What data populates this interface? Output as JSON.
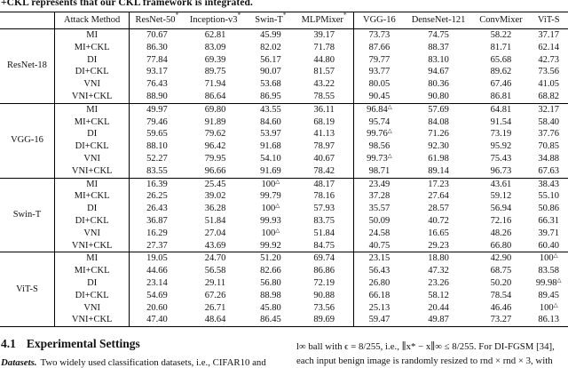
{
  "caption": "+CKL represents that our CKL framework is integrated.",
  "table": {
    "headers": [
      "Attack Method",
      "ResNet-50*",
      "Inception-v3*",
      "Swin-T*",
      "MLPMixer*",
      "VGG-16",
      "DenseNet-121",
      "ConvMixer",
      "ViT-S"
    ],
    "whitebox_marker": "△",
    "surrogate_marker": "*",
    "groups": [
      {
        "name": "ResNet-18",
        "rows": [
          {
            "method": "MI",
            "values": [
              "70.67",
              "62.81",
              "45.99",
              "39.17",
              "73.73",
              "74.75",
              "58.22",
              "37.17"
            ]
          },
          {
            "method": "MI+CKL",
            "values": [
              "86.30",
              "83.09",
              "82.02",
              "71.78",
              "87.66",
              "88.37",
              "81.71",
              "62.14"
            ]
          },
          {
            "method": "DI",
            "values": [
              "77.84",
              "69.39",
              "56.17",
              "44.80",
              "79.77",
              "83.10",
              "65.68",
              "42.73"
            ]
          },
          {
            "method": "DI+CKL",
            "values": [
              "93.17",
              "89.75",
              "90.07",
              "81.57",
              "93.77",
              "94.67",
              "89.62",
              "73.56"
            ]
          },
          {
            "method": "VNI",
            "values": [
              "76.43",
              "71.94",
              "53.68",
              "43.22",
              "80.05",
              "80.36",
              "67.46",
              "41.05"
            ]
          },
          {
            "method": "VNI+CKL",
            "values": [
              "88.90",
              "86.64",
              "86.95",
              "78.55",
              "90.45",
              "90.80",
              "86.81",
              "68.82"
            ]
          }
        ]
      },
      {
        "name": "VGG-16",
        "rows": [
          {
            "method": "MI",
            "values": [
              "49.97",
              "69.80",
              "43.55",
              "36.11",
              "96.84△",
              "57.69",
              "64.81",
              "32.17"
            ]
          },
          {
            "method": "MI+CKL",
            "values": [
              "79.46",
              "91.89",
              "84.60",
              "68.19",
              "95.74",
              "84.08",
              "91.54",
              "58.40"
            ]
          },
          {
            "method": "DI",
            "values": [
              "59.65",
              "79.62",
              "53.97",
              "41.13",
              "99.76△",
              "71.26",
              "73.19",
              "37.76"
            ]
          },
          {
            "method": "DI+CKL",
            "values": [
              "88.10",
              "96.42",
              "91.68",
              "78.97",
              "98.56",
              "92.30",
              "95.92",
              "70.85"
            ]
          },
          {
            "method": "VNI",
            "values": [
              "52.27",
              "79.95",
              "54.10",
              "40.67",
              "99.73△",
              "61.98",
              "75.43",
              "34.88"
            ]
          },
          {
            "method": "VNI+CKL",
            "values": [
              "83.55",
              "96.66",
              "91.69",
              "78.42",
              "98.71",
              "89.14",
              "96.73",
              "67.63"
            ]
          }
        ]
      },
      {
        "name": "Swin-T",
        "rows": [
          {
            "method": "MI",
            "values": [
              "16.39",
              "25.45",
              "100△",
              "48.17",
              "23.49",
              "17.23",
              "43.61",
              "38.43"
            ]
          },
          {
            "method": "MI+CKL",
            "values": [
              "26.25",
              "39.02",
              "99.79",
              "78.16",
              "37.28",
              "27.64",
              "59.12",
              "55.10"
            ]
          },
          {
            "method": "DI",
            "values": [
              "26.43",
              "36.28",
              "100△",
              "57.93",
              "35.57",
              "28.57",
              "56.94",
              "50.86"
            ]
          },
          {
            "method": "DI+CKL",
            "values": [
              "36.87",
              "51.84",
              "99.93",
              "83.75",
              "50.09",
              "40.72",
              "72.16",
              "66.31"
            ]
          },
          {
            "method": "VNI",
            "values": [
              "16.29",
              "27.04",
              "100△",
              "51.84",
              "24.58",
              "16.65",
              "48.26",
              "39.71"
            ]
          },
          {
            "method": "VNI+CKL",
            "values": [
              "27.37",
              "43.69",
              "99.92",
              "84.75",
              "40.75",
              "29.23",
              "66.80",
              "60.40"
            ]
          }
        ]
      },
      {
        "name": "ViT-S",
        "rows": [
          {
            "method": "MI",
            "values": [
              "19.05",
              "24.70",
              "51.20",
              "69.74",
              "23.15",
              "18.80",
              "42.90",
              "100△"
            ]
          },
          {
            "method": "MI+CKL",
            "values": [
              "44.66",
              "56.58",
              "82.66",
              "86.86",
              "56.43",
              "47.32",
              "68.75",
              "83.58"
            ]
          },
          {
            "method": "DI",
            "values": [
              "23.14",
              "29.11",
              "56.80",
              "72.19",
              "26.80",
              "23.26",
              "50.20",
              "99.98△"
            ]
          },
          {
            "method": "DI+CKL",
            "values": [
              "54.69",
              "67.26",
              "88.98",
              "90.88",
              "66.18",
              "58.12",
              "78.54",
              "89.45"
            ]
          },
          {
            "method": "VNI",
            "values": [
              "20.60",
              "26.71",
              "45.80",
              "73.56",
              "25.13",
              "20.44",
              "46.46",
              "100△"
            ]
          },
          {
            "method": "VNI+CKL",
            "values": [
              "47.40",
              "48.64",
              "86.45",
              "89.69",
              "59.47",
              "49.87",
              "73.27",
              "86.13"
            ]
          }
        ]
      }
    ]
  },
  "section": {
    "number": "4.1",
    "title": "Experimental Settings"
  },
  "bottom_left": {
    "para_label": "Datasets.",
    "para_text": "Two widely used classification datasets, i.e., CIFAR10 and"
  },
  "bottom_right": {
    "line1": "l∞ ball with ϵ = 8/255, i.e., ∥x* − x∥∞ ≤ 8/255. For DI-FGSM [34],",
    "line2": "each input benign image is randomly resized to rnd × rnd × 3, with"
  }
}
